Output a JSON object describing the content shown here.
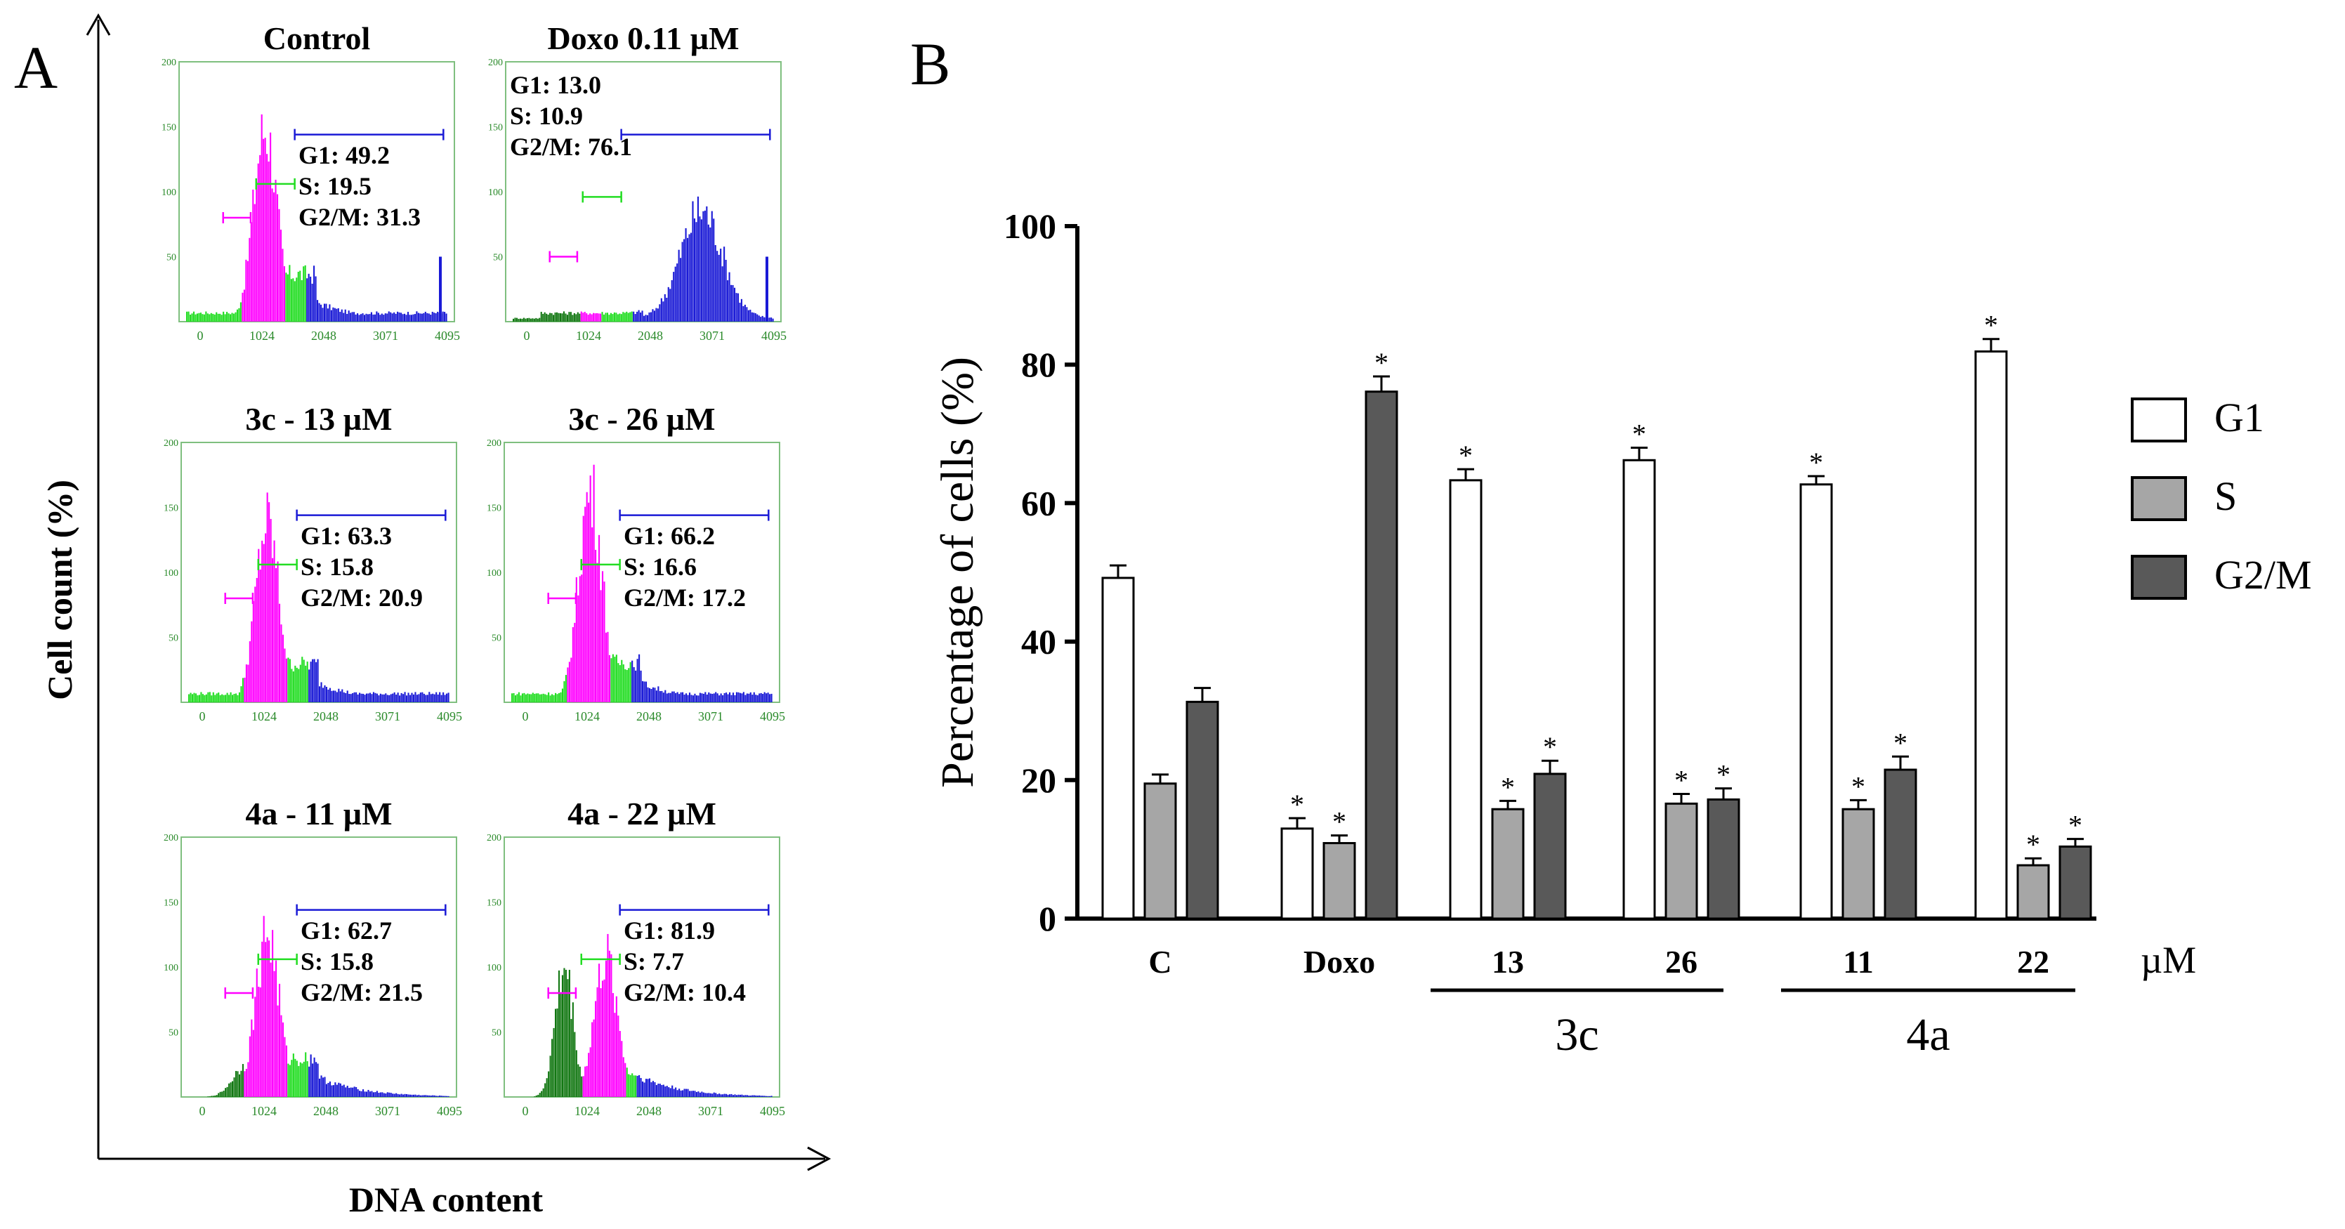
{
  "panel_a": {
    "label": "A",
    "y_axis_label": "Cell count  (%)",
    "x_axis_label": "DNA content",
    "histogram_ticks_x": [
      "0",
      "1024",
      "2048",
      "3071",
      "4095"
    ],
    "histogram_ticks_y": [
      "50",
      "100",
      "150",
      "200"
    ],
    "colors": {
      "g1": "#ff00ff",
      "s": "#22dd22",
      "g2m": "#1a1ad6",
      "subg1": "#117711",
      "frame": "#7fbf7f"
    },
    "histograms": [
      {
        "title": "Control",
        "g1": "G1: 49.2",
        "s": "S: 19.5",
        "g2m": "G2/M: 31.3",
        "G1": 49.2,
        "S": 19.5,
        "G2M": 31.3
      },
      {
        "title": "Doxo 0.11 µM",
        "g1": "G1: 13.0",
        "s": "S: 10.9",
        "g2m": "G2/M: 76.1",
        "G1": 13.0,
        "S": 10.9,
        "G2M": 76.1
      },
      {
        "title": "3c - 13 µM",
        "g1": "G1: 63.3",
        "s": "S: 15.8",
        "g2m": "G2/M: 20.9",
        "G1": 63.3,
        "S": 15.8,
        "G2M": 20.9
      },
      {
        "title": "3c - 26 µM",
        "g1": "G1: 66.2",
        "s": "S: 16.6",
        "g2m": "G2/M: 17.2",
        "G1": 66.2,
        "S": 16.6,
        "G2M": 17.2
      },
      {
        "title": "4a - 11 µM",
        "g1": "G1: 62.7",
        "s": "S: 15.8",
        "g2m": "G2/M: 21.5",
        "G1": 62.7,
        "S": 15.8,
        "G2M": 21.5
      },
      {
        "title": "4a - 22 µM",
        "g1": "G1: 81.9",
        "s": "S: 7.7",
        "g2m": "G2/M: 10.4",
        "G1": 81.9,
        "S": 7.7,
        "G2M": 10.4
      }
    ]
  },
  "chart_data": {
    "type": "bar",
    "panel_label": "B",
    "ylabel": "Percentage of cells (%)",
    "xlabel": "",
    "ylim": [
      0,
      100
    ],
    "yticks": [
      0,
      20,
      40,
      60,
      80,
      100
    ],
    "categories": [
      "C",
      "Doxo",
      "13",
      "26",
      "11",
      "22"
    ],
    "unit_label": "µM",
    "groups": [
      {
        "label": "3c",
        "from": 2,
        "to": 3
      },
      {
        "label": "4a",
        "from": 4,
        "to": 5
      }
    ],
    "legend_position": "right",
    "series": [
      {
        "name": "G1",
        "color": "#ffffff",
        "values": [
          49.2,
          13.0,
          63.3,
          66.2,
          62.7,
          81.9
        ],
        "errors": [
          1.8,
          1.5,
          1.6,
          1.8,
          1.2,
          1.8
        ],
        "significant": [
          false,
          true,
          true,
          true,
          true,
          true
        ]
      },
      {
        "name": "S",
        "color": "#a6a6a6",
        "values": [
          19.5,
          10.9,
          15.8,
          16.6,
          15.8,
          7.7
        ],
        "errors": [
          1.3,
          1.1,
          1.2,
          1.4,
          1.3,
          1.0
        ],
        "significant": [
          false,
          true,
          true,
          true,
          true,
          true
        ]
      },
      {
        "name": "G2/M",
        "color": "#595959",
        "values": [
          31.3,
          76.1,
          20.9,
          17.2,
          21.5,
          10.4
        ],
        "errors": [
          2.0,
          2.2,
          1.9,
          1.6,
          1.9,
          1.1
        ],
        "significant": [
          false,
          true,
          true,
          true,
          true,
          true
        ]
      }
    ],
    "significance_marker": "*"
  }
}
